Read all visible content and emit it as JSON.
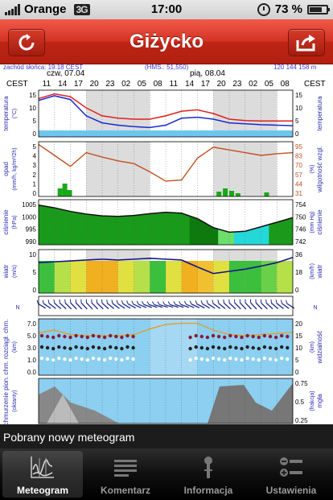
{
  "status": {
    "carrier": "Orange",
    "network": "3G",
    "time": "17:00",
    "battery": "73 %",
    "battery_level": 0.73
  },
  "nav": {
    "title": "Giżycko",
    "left_icon": "refresh-icon",
    "right_icon": "share-icon"
  },
  "meteogram": {
    "header_left": "zachód słońca: 19:18 CEST",
    "header_mid": "(HMS.: 51,550)",
    "header_right": "120 144 158 m",
    "tz": "CEST",
    "day1": "czw, 07.04",
    "day2": "pią, 08.04",
    "hours": [
      "11",
      "14",
      "17",
      "20",
      "23",
      "02",
      "05",
      "08",
      "11",
      "14",
      "17",
      "20",
      "23",
      "02",
      "05",
      "08"
    ],
    "panels": {
      "temp": {
        "label": "temperatura",
        "unit": "(°C)",
        "left_ticks": [
          "15",
          "10",
          "5",
          "0"
        ],
        "right_ticks": [
          "15",
          "10",
          "5",
          "0"
        ],
        "right_label": "temperatura"
      },
      "precip": {
        "label": "opad",
        "unit": "(mm/h, kg/m²/2h)",
        "left_ticks": [
          "5",
          "4",
          "3",
          "2",
          "1",
          "0"
        ],
        "right_ticks": [
          "95",
          "83",
          "70",
          "57",
          "44",
          "31"
        ],
        "right_label": "wilgotność wzgl.",
        "right_unit": "(%)"
      },
      "pressure": {
        "label": "ciśnienie",
        "unit": "(hPa)",
        "left_ticks": [
          "1005",
          "1000",
          "995",
          "990"
        ],
        "right_ticks": [
          "754",
          "750",
          "746",
          "742"
        ],
        "right_label": "ciśnienie",
        "right_unit": "(mm Hg)"
      },
      "wind": {
        "label": "wiatr",
        "unit": "(m/s)",
        "left_ticks": [
          "10",
          "5",
          "0"
        ],
        "right_ticks": [
          "36",
          "18",
          "0"
        ],
        "right_label": "wiatr",
        "right_unit": "(km/h)"
      },
      "clouds": {
        "label": "chm. rozciągł. chm.",
        "unit": "(km)",
        "left_ticks": [
          "7.0",
          "5.0",
          "3.0",
          "1.0",
          "0.0"
        ],
        "right_ticks": [
          "20",
          "15",
          "10",
          "5",
          "0"
        ],
        "right_label": "widzialność",
        "right_unit": "(km)"
      },
      "cover": {
        "label": "chmurzenie pion.",
        "unit": "(oktanty)",
        "right_ticks": [
          "0.75",
          "0.5",
          "0.25"
        ],
        "right_label": "mgła",
        "right_unit": "(frakcja)"
      }
    }
  },
  "toast": "Pobrany nowy meteogram",
  "tabs": [
    {
      "label": "Meteogram",
      "icon": "meteogram-icon",
      "active": true
    },
    {
      "label": "Komentarz",
      "icon": "comment-icon",
      "active": false
    },
    {
      "label": "Informacja",
      "icon": "info-icon",
      "active": false
    },
    {
      "label": "Ustawienia",
      "icon": "settings-icon",
      "active": false
    }
  ]
}
